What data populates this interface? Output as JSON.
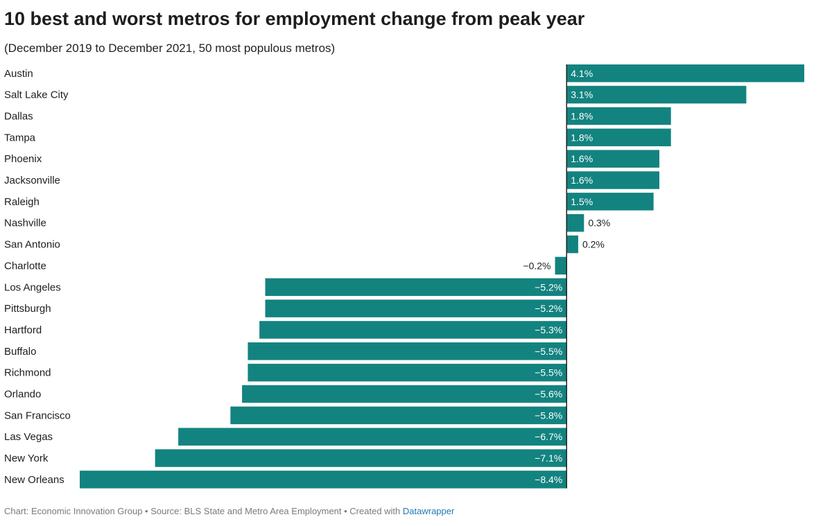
{
  "chart_data": {
    "type": "bar",
    "orientation": "horizontal",
    "title": "10 best and worst metros for employment change from peak year",
    "subtitle": "(December 2019 to December 2021, 50 most populous metros)",
    "xlabel": "",
    "ylabel": "",
    "unit": "%",
    "xlim": [
      -8.4,
      4.1
    ],
    "grid": false,
    "bar_color": "#138380",
    "categories": [
      "Austin",
      "Salt Lake City",
      "Dallas",
      "Tampa",
      "Phoenix",
      "Jacksonville",
      "Raleigh",
      "Nashville",
      "San Antonio",
      "Charlotte",
      "Los Angeles",
      "Pittsburgh",
      "Hartford",
      "Buffalo",
      "Richmond",
      "Orlando",
      "San Francisco",
      "Las Vegas",
      "New York",
      "New Orleans"
    ],
    "values": [
      4.1,
      3.1,
      1.8,
      1.8,
      1.6,
      1.6,
      1.5,
      0.3,
      0.2,
      -0.2,
      -5.2,
      -5.2,
      -5.3,
      -5.5,
      -5.5,
      -5.6,
      -5.8,
      -6.7,
      -7.1,
      -8.4
    ],
    "value_labels": [
      "4.1%",
      "3.1%",
      "1.8%",
      "1.8%",
      "1.6%",
      "1.6%",
      "1.5%",
      "0.3%",
      "0.2%",
      "−0.2%",
      "−5.2%",
      "−5.2%",
      "−5.3%",
      "−5.5%",
      "−5.5%",
      "−5.6%",
      "−5.8%",
      "−6.7%",
      "−7.1%",
      "−8.4%"
    ]
  },
  "footer": {
    "credit": "Chart: Economic Innovation Group • Source: BLS State and Metro Area Employment • Created with ",
    "link_text": "Datawrapper"
  }
}
